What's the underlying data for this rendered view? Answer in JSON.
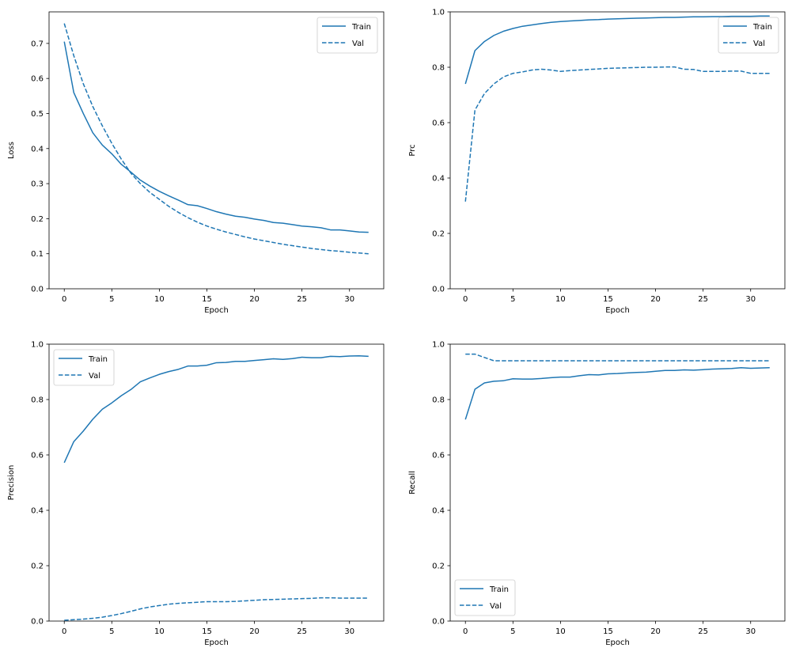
{
  "colors": {
    "series": "#1f77b4",
    "axis": "#000000",
    "legend_border": "#cccccc"
  },
  "chart_data": [
    {
      "type": "line",
      "title": "",
      "xlabel": "Epoch",
      "ylabel": "Loss",
      "xlim": [
        -1.6,
        33.6
      ],
      "ylim": [
        0,
        0.79
      ],
      "xticks": [
        0,
        5,
        10,
        15,
        20,
        25,
        30
      ],
      "yticks": [
        0.0,
        0.1,
        0.2,
        0.3,
        0.4,
        0.5,
        0.6,
        0.7
      ],
      "grid": false,
      "legend": "top-right",
      "series": [
        {
          "name": "Train",
          "style": "solid",
          "values": [
            0.705,
            0.56,
            0.5,
            0.445,
            0.41,
            0.385,
            0.355,
            0.333,
            0.31,
            0.293,
            0.278,
            0.265,
            0.253,
            0.24,
            0.237,
            0.229,
            0.22,
            0.213,
            0.207,
            0.204,
            0.199,
            0.195,
            0.189,
            0.187,
            0.183,
            0.179,
            0.177,
            0.174,
            0.168,
            0.168,
            0.165,
            0.162,
            0.161
          ]
        },
        {
          "name": "Val",
          "style": "dashed",
          "values": [
            0.757,
            0.665,
            0.585,
            0.52,
            0.465,
            0.415,
            0.37,
            0.33,
            0.3,
            0.275,
            0.255,
            0.235,
            0.218,
            0.203,
            0.19,
            0.179,
            0.17,
            0.162,
            0.155,
            0.148,
            0.142,
            0.137,
            0.132,
            0.127,
            0.123,
            0.119,
            0.115,
            0.112,
            0.109,
            0.107,
            0.104,
            0.102,
            0.1
          ]
        }
      ]
    },
    {
      "type": "line",
      "title": "",
      "xlabel": "Epoch",
      "ylabel": "Prc",
      "xlim": [
        -1.6,
        33.6
      ],
      "ylim": [
        0,
        1
      ],
      "xticks": [
        0,
        5,
        10,
        15,
        20,
        25,
        30
      ],
      "yticks": [
        0.0,
        0.2,
        0.4,
        0.6,
        0.8,
        1.0
      ],
      "grid": false,
      "legend": "top-right",
      "series": [
        {
          "name": "Train",
          "style": "solid",
          "values": [
            0.74,
            0.86,
            0.893,
            0.915,
            0.93,
            0.94,
            0.948,
            0.953,
            0.958,
            0.962,
            0.965,
            0.967,
            0.969,
            0.971,
            0.972,
            0.974,
            0.975,
            0.976,
            0.977,
            0.978,
            0.979,
            0.98,
            0.98,
            0.981,
            0.982,
            0.982,
            0.983,
            0.983,
            0.984,
            0.984,
            0.984,
            0.985,
            0.985
          ]
        },
        {
          "name": "Val",
          "style": "dashed",
          "values": [
            0.315,
            0.645,
            0.705,
            0.74,
            0.765,
            0.778,
            0.783,
            0.79,
            0.793,
            0.79,
            0.785,
            0.788,
            0.79,
            0.792,
            0.794,
            0.796,
            0.797,
            0.798,
            0.799,
            0.8,
            0.8,
            0.801,
            0.801,
            0.793,
            0.792,
            0.785,
            0.785,
            0.785,
            0.786,
            0.786,
            0.778,
            0.778,
            0.778
          ]
        }
      ]
    },
    {
      "type": "line",
      "title": "",
      "xlabel": "Epoch",
      "ylabel": "Precision",
      "xlim": [
        -1.6,
        33.6
      ],
      "ylim": [
        0,
        1
      ],
      "xticks": [
        0,
        5,
        10,
        15,
        20,
        25,
        30
      ],
      "yticks": [
        0.0,
        0.2,
        0.4,
        0.6,
        0.8,
        1.0
      ],
      "grid": false,
      "legend": "top-left",
      "series": [
        {
          "name": "Train",
          "style": "solid",
          "values": [
            0.572,
            0.648,
            0.686,
            0.729,
            0.765,
            0.788,
            0.814,
            0.836,
            0.864,
            0.878,
            0.891,
            0.901,
            0.909,
            0.921,
            0.921,
            0.924,
            0.933,
            0.934,
            0.938,
            0.938,
            0.941,
            0.944,
            0.947,
            0.945,
            0.948,
            0.953,
            0.951,
            0.951,
            0.956,
            0.955,
            0.957,
            0.958,
            0.956
          ]
        },
        {
          "name": "Val",
          "style": "dashed",
          "values": [
            0.003,
            0.005,
            0.007,
            0.01,
            0.014,
            0.02,
            0.027,
            0.035,
            0.044,
            0.051,
            0.056,
            0.061,
            0.064,
            0.066,
            0.068,
            0.07,
            0.07,
            0.07,
            0.071,
            0.073,
            0.075,
            0.077,
            0.078,
            0.079,
            0.08,
            0.081,
            0.082,
            0.084,
            0.084,
            0.083,
            0.083,
            0.083,
            0.083
          ]
        }
      ]
    },
    {
      "type": "line",
      "title": "",
      "xlabel": "Epoch",
      "ylabel": "Recall",
      "xlim": [
        -1.6,
        33.6
      ],
      "ylim": [
        0,
        1
      ],
      "xticks": [
        0,
        5,
        10,
        15,
        20,
        25,
        30
      ],
      "yticks": [
        0.0,
        0.2,
        0.4,
        0.6,
        0.8,
        1.0
      ],
      "grid": false,
      "legend": "bottom-left",
      "series": [
        {
          "name": "Train",
          "style": "solid",
          "values": [
            0.728,
            0.837,
            0.86,
            0.866,
            0.868,
            0.875,
            0.874,
            0.874,
            0.876,
            0.879,
            0.881,
            0.881,
            0.886,
            0.89,
            0.889,
            0.893,
            0.894,
            0.896,
            0.898,
            0.899,
            0.902,
            0.905,
            0.905,
            0.907,
            0.906,
            0.908,
            0.91,
            0.911,
            0.912,
            0.915,
            0.913,
            0.914,
            0.915
          ]
        },
        {
          "name": "Val",
          "style": "dashed",
          "values": [
            0.964,
            0.964,
            0.952,
            0.94,
            0.94,
            0.94,
            0.94,
            0.94,
            0.94,
            0.94,
            0.94,
            0.94,
            0.94,
            0.94,
            0.94,
            0.94,
            0.94,
            0.94,
            0.94,
            0.94,
            0.94,
            0.94,
            0.94,
            0.94,
            0.94,
            0.94,
            0.94,
            0.94,
            0.94,
            0.94,
            0.94,
            0.94,
            0.94
          ]
        }
      ]
    }
  ]
}
